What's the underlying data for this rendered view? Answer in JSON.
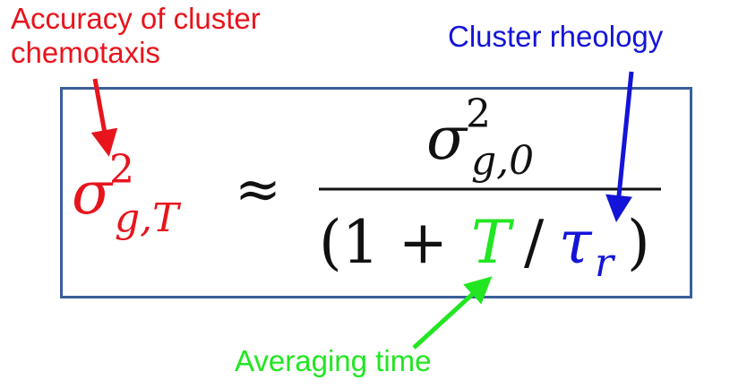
{
  "colors": {
    "red": "#e8141c",
    "blue": "#1414d8",
    "green": "#22e622",
    "black": "#111111",
    "box_border": "#3a5f99"
  },
  "annotations": {
    "accuracy": "Accuracy of cluster\nchemotaxis",
    "rheology": "Cluster rheology",
    "time": "Averaging time"
  },
  "equation": {
    "lhs_sym": "σ",
    "lhs_sup": "2",
    "lhs_sub": "g,T",
    "approx": "≈",
    "num_sym": "σ",
    "num_sup": "2",
    "num_sub": "g,0",
    "den_open": "(1 +",
    "den_T": "T",
    "den_slash": "/",
    "den_tau": "τ",
    "den_tau_sub": "r",
    "den_close": ")"
  }
}
